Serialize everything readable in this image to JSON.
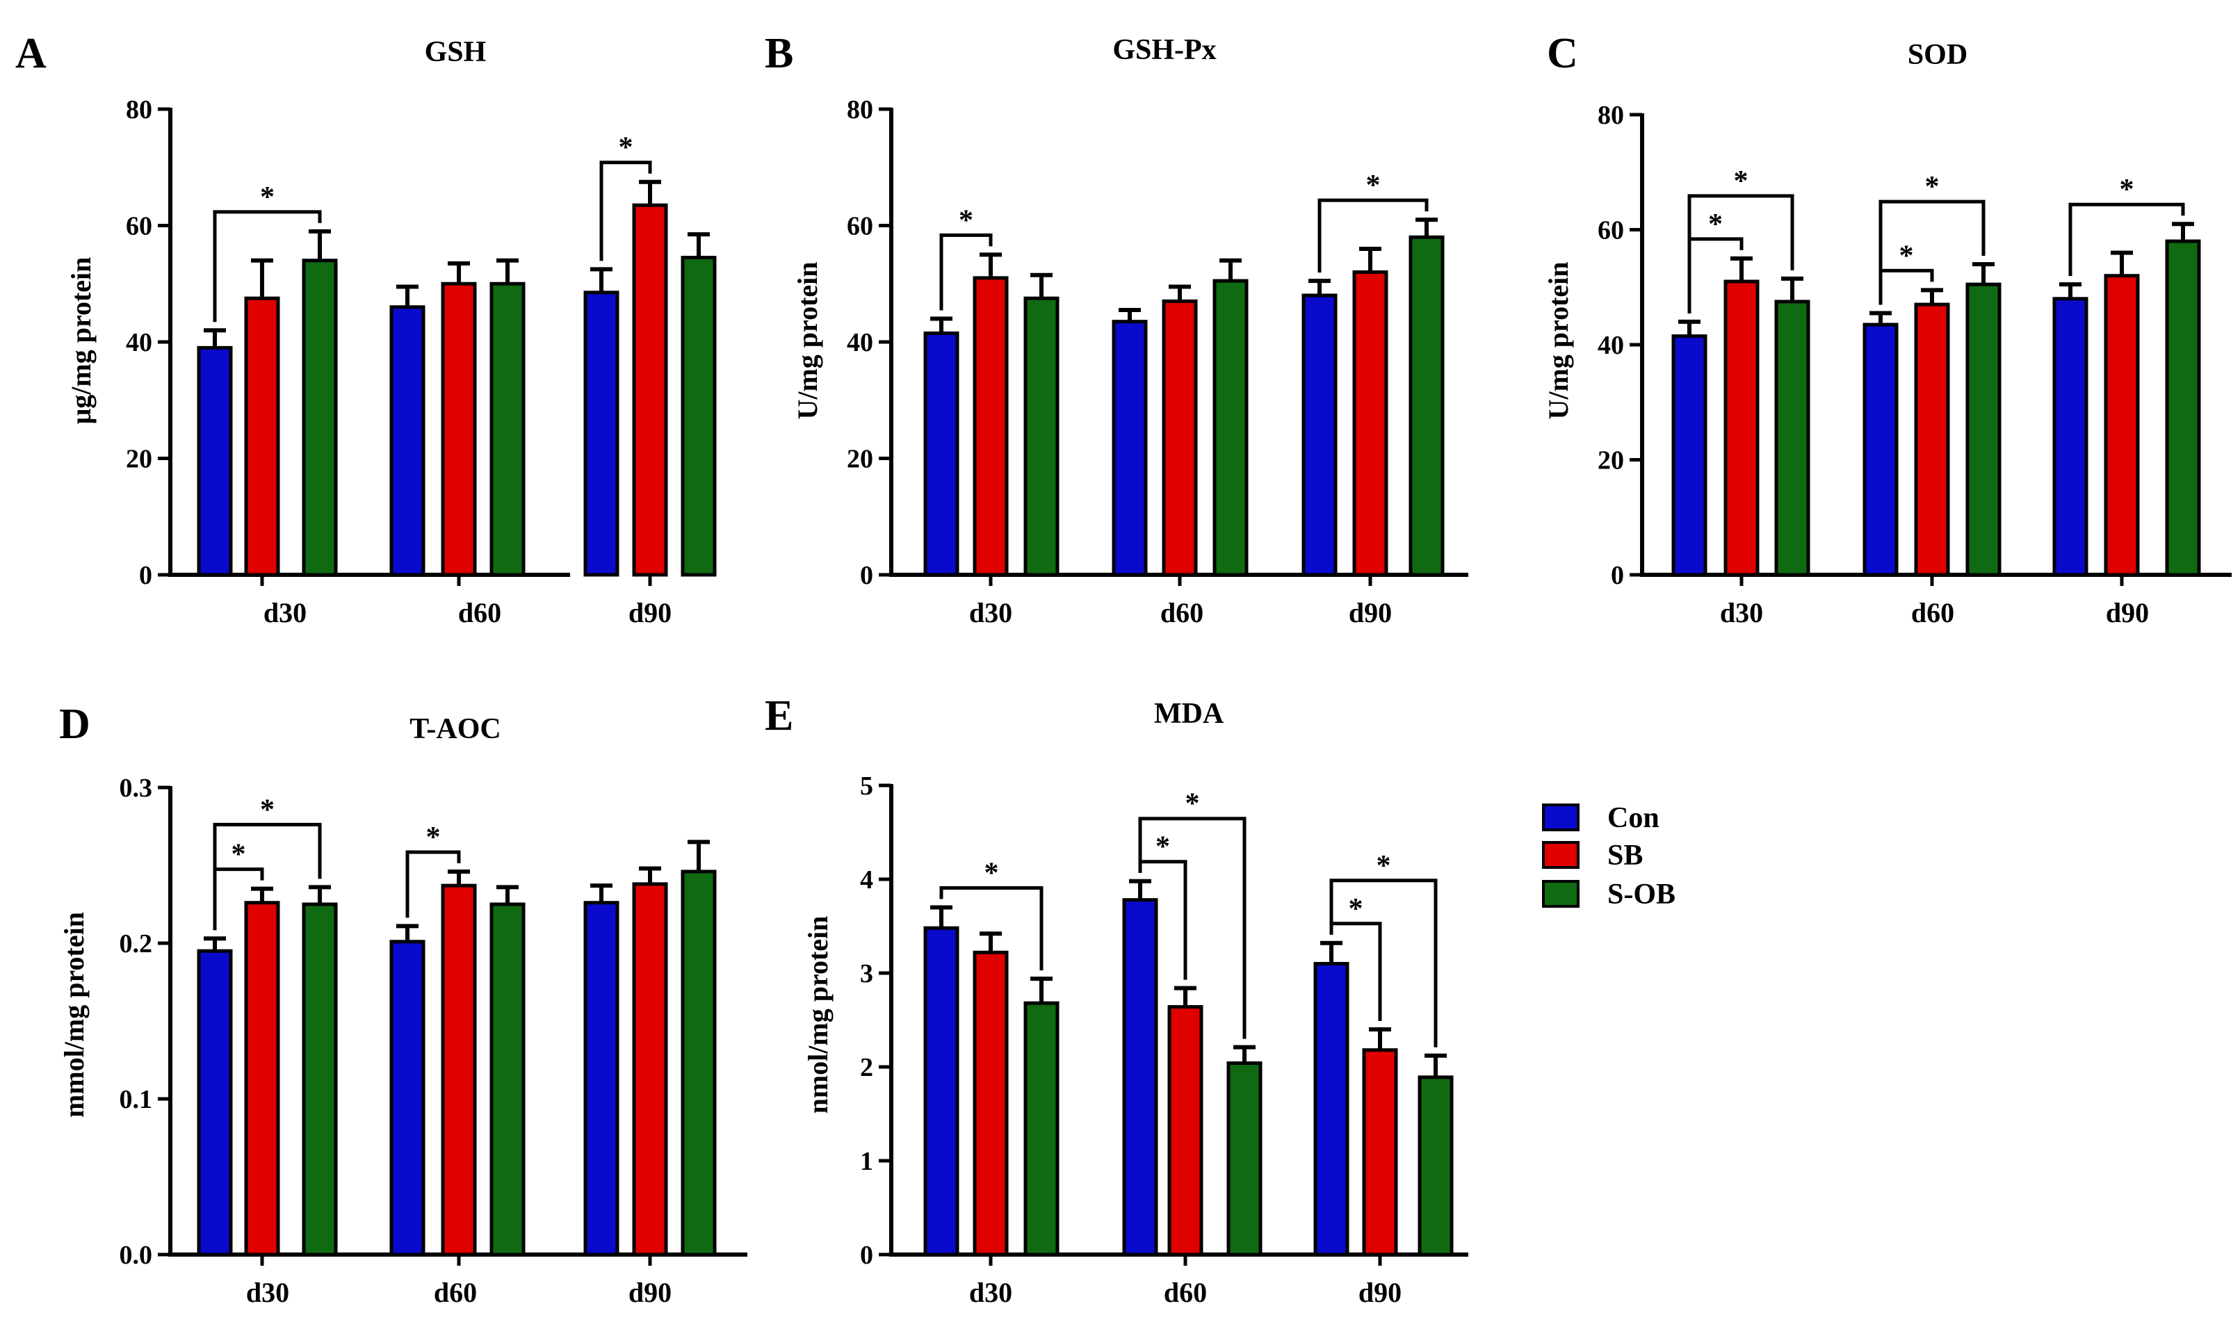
{
  "legend": {
    "entries": [
      "Con",
      "SB",
      "S-OB"
    ],
    "colors": [
      "#0a0acd",
      "#e00000",
      "#0f6a12"
    ]
  },
  "chart_data": [
    {
      "id": "gsh",
      "panel_label": "A",
      "type": "bar",
      "title": "GSH",
      "ylabel": "μg/mg protein",
      "xlabel": "",
      "categories": [
        "d30",
        "d60",
        "d90"
      ],
      "series": [
        {
          "name": "Con",
          "values": [
            39,
            46,
            48.5
          ],
          "errors": [
            3,
            3.5,
            4
          ]
        },
        {
          "name": "SB",
          "values": [
            47.5,
            50,
            63.5
          ],
          "errors": [
            6.5,
            3.5,
            4
          ]
        },
        {
          "name": "S-OB",
          "values": [
            54,
            50,
            54.5
          ],
          "errors": [
            5,
            4,
            4
          ]
        }
      ],
      "ylim": [
        0,
        80
      ],
      "yticks": [
        0,
        20,
        40,
        60,
        80
      ],
      "ytick_labels": [
        "0",
        "20",
        "40",
        "60",
        "80"
      ],
      "significance": [
        {
          "cat": 0,
          "from": 0,
          "to": 2,
          "label": "*"
        },
        {
          "cat": 2,
          "from": 0,
          "to": 1,
          "label": "*"
        }
      ]
    },
    {
      "id": "gshpx",
      "panel_label": "B",
      "type": "bar",
      "title": "GSH-Px",
      "ylabel": "U/mg protein",
      "xlabel": "",
      "categories": [
        "d30",
        "d60",
        "d90"
      ],
      "series": [
        {
          "name": "Con",
          "values": [
            41.5,
            43.5,
            48
          ],
          "errors": [
            2.5,
            2,
            2.5
          ]
        },
        {
          "name": "SB",
          "values": [
            51,
            47,
            52
          ],
          "errors": [
            4,
            2.5,
            4
          ]
        },
        {
          "name": "S-OB",
          "values": [
            47.5,
            50.5,
            58
          ],
          "errors": [
            4,
            3.5,
            3
          ]
        }
      ],
      "ylim": [
        0,
        80
      ],
      "yticks": [
        0,
        20,
        40,
        60,
        80
      ],
      "ytick_labels": [
        "0",
        "20",
        "40",
        "60",
        "80"
      ],
      "significance": [
        {
          "cat": 0,
          "from": 0,
          "to": 1,
          "label": "*"
        },
        {
          "cat": 2,
          "from": 0,
          "to": 2,
          "label": "*"
        }
      ]
    },
    {
      "id": "sod",
      "panel_label": "C",
      "type": "bar",
      "title": "SOD",
      "ylabel": "U/mg protein",
      "xlabel": "",
      "categories": [
        "d30",
        "d60",
        "d90"
      ],
      "series": [
        {
          "name": "Con",
          "values": [
            41.5,
            43.5,
            48
          ],
          "errors": [
            2.5,
            2,
            2.5
          ]
        },
        {
          "name": "SB",
          "values": [
            51,
            47,
            52
          ],
          "errors": [
            4,
            2.5,
            4
          ]
        },
        {
          "name": "S-OB",
          "values": [
            47.5,
            50.5,
            58
          ],
          "errors": [
            4,
            3.5,
            3
          ]
        }
      ],
      "ylim": [
        0,
        80
      ],
      "yticks": [
        0,
        20,
        40,
        60,
        80
      ],
      "ytick_labels": [
        "0",
        "20",
        "40",
        "60",
        "80"
      ],
      "significance": [
        {
          "cat": 0,
          "from": 0,
          "to": 1,
          "label": "*"
        },
        {
          "cat": 0,
          "from": 0,
          "to": 2,
          "label": "*"
        },
        {
          "cat": 1,
          "from": 0,
          "to": 1,
          "label": "*"
        },
        {
          "cat": 1,
          "from": 0,
          "to": 2,
          "label": "*"
        },
        {
          "cat": 2,
          "from": 0,
          "to": 2,
          "label": "*"
        }
      ]
    },
    {
      "id": "taoc",
      "panel_label": "D",
      "type": "bar",
      "title": "T-AOC",
      "ylabel": "mmol/mg protein",
      "xlabel": "",
      "categories": [
        "d30",
        "d60",
        "d90"
      ],
      "series": [
        {
          "name": "Con",
          "values": [
            0.195,
            0.201,
            0.226
          ],
          "errors": [
            0.008,
            0.01,
            0.011
          ]
        },
        {
          "name": "SB",
          "values": [
            0.226,
            0.237,
            0.238
          ],
          "errors": [
            0.009,
            0.009,
            0.01
          ]
        },
        {
          "name": "S-OB",
          "values": [
            0.225,
            0.225,
            0.246
          ],
          "errors": [
            0.011,
            0.011,
            0.019
          ]
        }
      ],
      "ylim": [
        0,
        0.3
      ],
      "yticks": [
        0,
        0.1,
        0.2,
        0.3
      ],
      "ytick_labels": [
        "0.0",
        "0.1",
        "0.2",
        "0.3"
      ],
      "significance": [
        {
          "cat": 0,
          "from": 0,
          "to": 1,
          "label": "*"
        },
        {
          "cat": 0,
          "from": 0,
          "to": 2,
          "label": "*"
        },
        {
          "cat": 1,
          "from": 0,
          "to": 1,
          "label": "*"
        }
      ]
    },
    {
      "id": "mda",
      "panel_label": "E",
      "type": "bar",
      "title": "MDA",
      "ylabel": "nmol/mg protein",
      "xlabel": "",
      "categories": [
        "d30",
        "d60",
        "d90"
      ],
      "series": [
        {
          "name": "Con",
          "values": [
            3.48,
            3.78,
            3.1
          ],
          "errors": [
            0.22,
            0.2,
            0.22
          ]
        },
        {
          "name": "SB",
          "values": [
            3.22,
            2.64,
            2.18
          ],
          "errors": [
            0.2,
            0.2,
            0.22
          ]
        },
        {
          "name": "S-OB",
          "values": [
            2.68,
            2.04,
            1.89
          ],
          "errors": [
            0.26,
            0.17,
            0.23
          ]
        }
      ],
      "ylim": [
        0,
        5
      ],
      "yticks": [
        0,
        1,
        2,
        3,
        4,
        5
      ],
      "ytick_labels": [
        "0",
        "1",
        "2",
        "3",
        "4",
        "5"
      ],
      "significance": [
        {
          "cat": 0,
          "from": 0,
          "to": 2,
          "label": "*"
        },
        {
          "cat": 1,
          "from": 0,
          "to": 1,
          "label": "*"
        },
        {
          "cat": 1,
          "from": 0,
          "to": 2,
          "label": "*"
        },
        {
          "cat": 2,
          "from": 0,
          "to": 1,
          "label": "*"
        },
        {
          "cat": 2,
          "from": 0,
          "to": 2,
          "label": "*"
        }
      ]
    }
  ]
}
